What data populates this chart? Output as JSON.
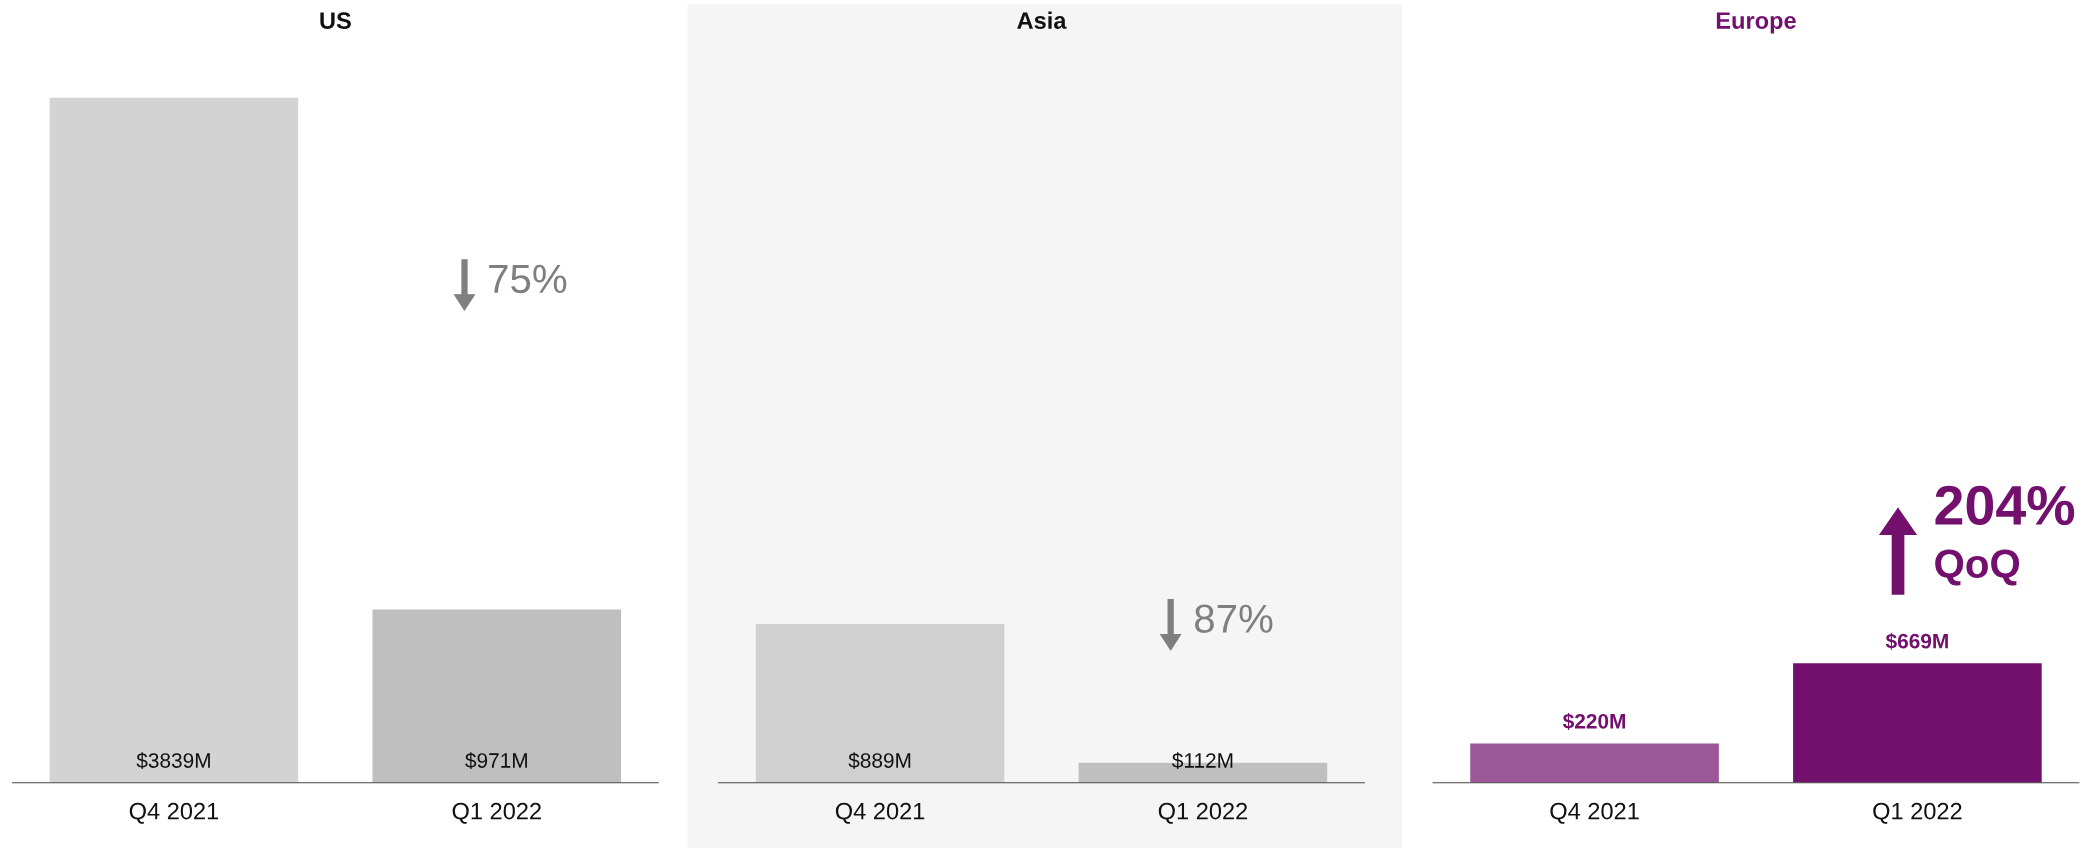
{
  "chart_data": [
    {
      "type": "bar",
      "title": "US",
      "categories": [
        "Q4 2021",
        "Q1 2022"
      ],
      "values": [
        3839,
        971
      ],
      "colors": [
        "#d3d3d3",
        "#bfbfbf"
      ],
      "value_labels": [
        "$3839M",
        "$971M"
      ],
      "tick_labels": "x",
      "grid": false,
      "legend": false,
      "annotations": [
        "75%"
      ]
    },
    {
      "type": "bar",
      "title": "Asia",
      "categories": [
        "Q4 2021",
        "Q1 2022"
      ],
      "values": [
        889,
        112
      ],
      "colors": [
        "#d0d0d0",
        "#bfbfbf"
      ],
      "value_labels": [
        "$889M",
        "$112M"
      ],
      "tick_labels": "x",
      "grid": false,
      "legend": false,
      "annotations": [
        "87%"
      ]
    },
    {
      "type": "bar",
      "title": "Europe",
      "categories": [
        "Q4 2021",
        "Q1 2022"
      ],
      "values": [
        220,
        669
      ],
      "colors": [
        "#9b5797",
        "#73106e"
      ],
      "value_labels": [
        "$220M",
        "$669M"
      ],
      "tick_labels": "x",
      "grid": false,
      "legend": false,
      "annotations": [
        "204%",
        "QoQ"
      ]
    }
  ]
}
